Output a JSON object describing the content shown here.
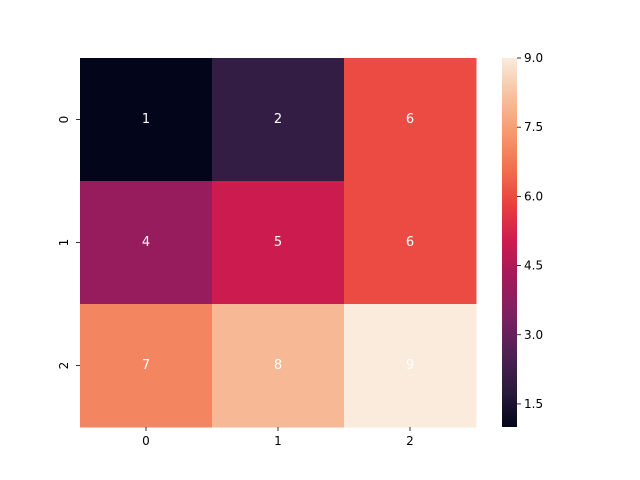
{
  "chart_data": {
    "type": "heatmap",
    "x_categories": [
      "0",
      "1",
      "2"
    ],
    "y_categories": [
      "0",
      "1",
      "2"
    ],
    "values": [
      [
        1,
        2,
        6
      ],
      [
        4,
        5,
        6
      ],
      [
        7,
        8,
        9
      ]
    ],
    "annotations": [
      [
        "1",
        "2",
        "6"
      ],
      [
        "4",
        "5",
        "6"
      ],
      [
        "7",
        "8",
        "9"
      ]
    ],
    "colorbar": {
      "min": 1,
      "max": 9,
      "ticks": [
        1.5,
        3.0,
        4.5,
        6.0,
        7.5,
        9.0
      ],
      "tick_labels": [
        "1.5",
        "3.0",
        "4.5",
        "6.0",
        "7.5",
        "9.0"
      ]
    },
    "colormap": "rocket",
    "colormap_stops": [
      "#03051a",
      "#2b1b3e",
      "#4f2155",
      "#7a2162",
      "#a11a5b",
      "#cb1b4f",
      "#e83f3f",
      "#f26f4f",
      "#f69a72",
      "#f6c2a0",
      "#faebdd"
    ]
  }
}
